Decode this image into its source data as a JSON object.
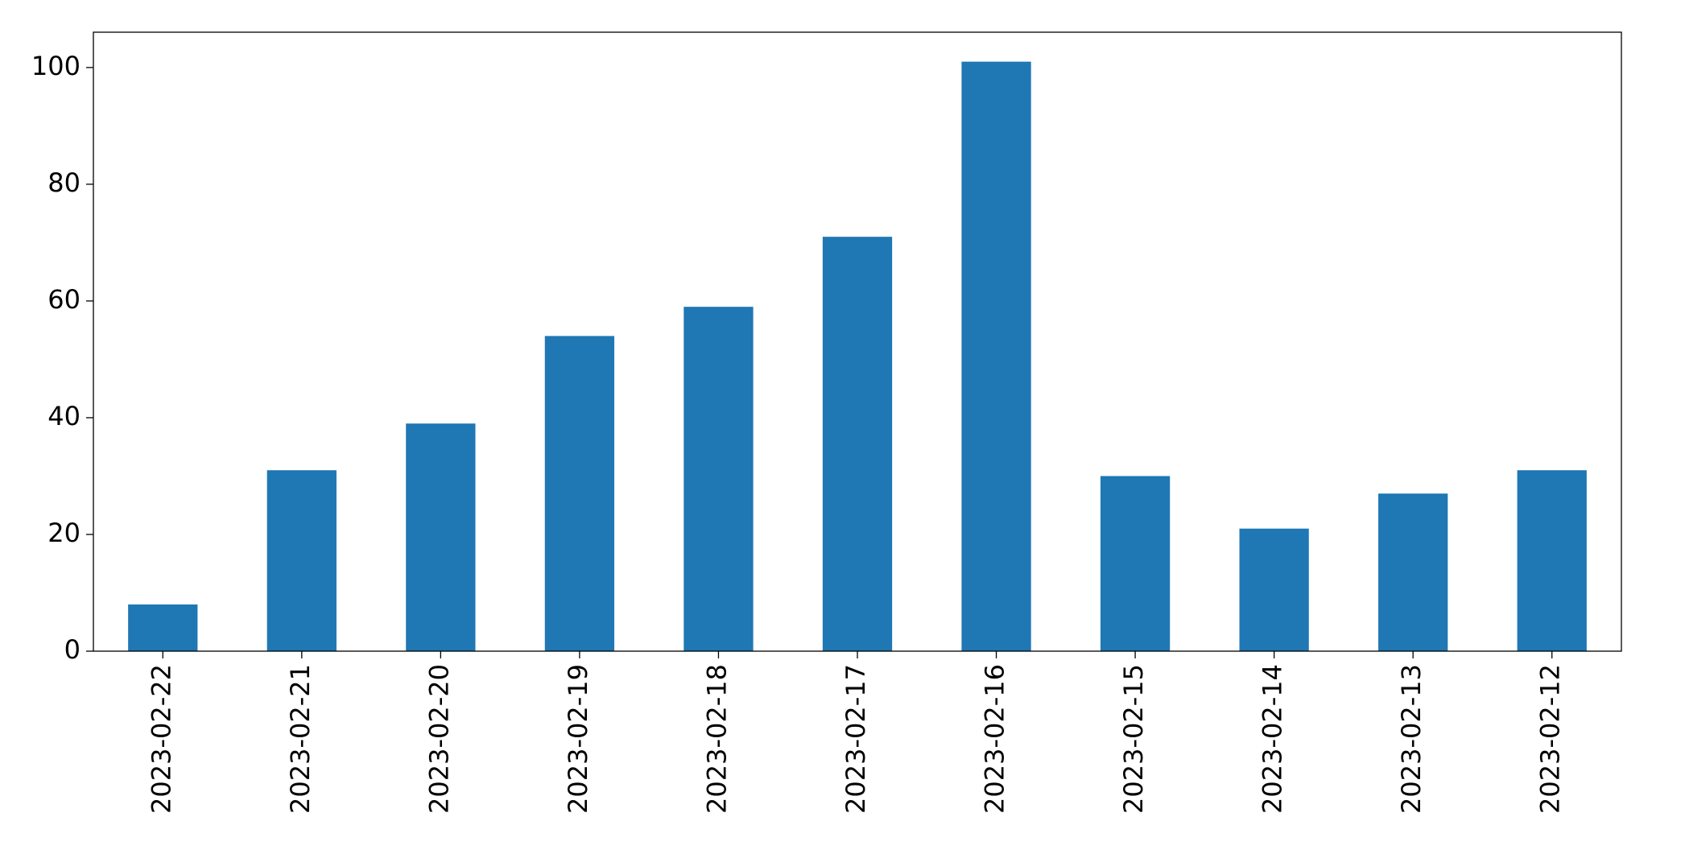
{
  "chart_data": {
    "type": "bar",
    "categories": [
      "2023-02-22",
      "2023-02-21",
      "2023-02-20",
      "2023-02-19",
      "2023-02-18",
      "2023-02-17",
      "2023-02-16",
      "2023-02-15",
      "2023-02-14",
      "2023-02-13",
      "2023-02-12"
    ],
    "values": [
      8,
      31,
      39,
      54,
      59,
      71,
      101,
      30,
      21,
      27,
      31
    ],
    "color": "#1f77b4",
    "ylim": [
      0,
      106.05
    ],
    "yticks": [
      0,
      20,
      40,
      60,
      80,
      100
    ],
    "grid": false
  }
}
